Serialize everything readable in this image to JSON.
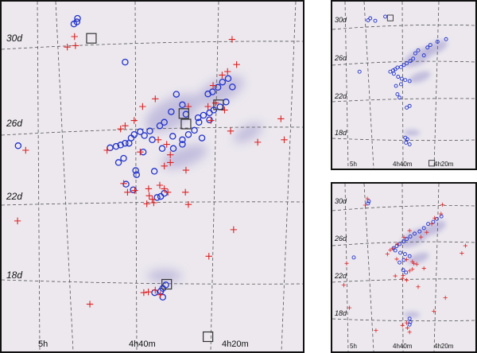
{
  "chart_data": [
    {
      "type": "scatter",
      "panel": "main",
      "title": "",
      "xlabel": "",
      "ylabel": "",
      "x_ticks": [
        "5h",
        "4h40m",
        "4h20m"
      ],
      "y_ticks": [
        "30d",
        "26d",
        "22d",
        "18d"
      ],
      "grid": true,
      "series": [
        {
          "marker": "circle",
          "color": "#2233cc",
          "points": [
            [
              0.252,
              0.048
            ],
            [
              0.25,
              0.058
            ],
            [
              0.24,
              0.064
            ],
            [
              0.41,
              0.173
            ],
            [
              0.733,
              0.23
            ],
            [
              0.752,
              0.22
            ],
            [
              0.718,
              0.245
            ],
            [
              0.7,
              0.258
            ],
            [
              0.685,
              0.264
            ],
            [
              0.766,
              0.244
            ],
            [
              0.745,
              0.287
            ],
            [
              0.725,
              0.301
            ],
            [
              0.704,
              0.31
            ],
            [
              0.69,
              0.318
            ],
            [
              0.67,
              0.325
            ],
            [
              0.652,
              0.332
            ],
            [
              0.58,
              0.265
            ],
            [
              0.6,
              0.295
            ],
            [
              0.563,
              0.315
            ],
            [
              0.612,
              0.322
            ],
            [
              0.54,
              0.345
            ],
            [
              0.525,
              0.355
            ],
            [
              0.492,
              0.37
            ],
            [
              0.46,
              0.372
            ],
            [
              0.44,
              0.38
            ],
            [
              0.43,
              0.39
            ],
            [
              0.41,
              0.405
            ],
            [
              0.395,
              0.41
            ],
            [
              0.38,
              0.414
            ],
            [
              0.36,
              0.418
            ],
            [
              0.423,
              0.405
            ],
            [
              0.474,
              0.383
            ],
            [
              0.5,
              0.395
            ],
            [
              0.568,
              0.385
            ],
            [
              0.6,
              0.395
            ],
            [
              0.64,
              0.368
            ],
            [
              0.655,
              0.345
            ],
            [
              0.69,
              0.338
            ],
            [
              0.665,
              0.39
            ],
            [
              0.62,
              0.38
            ],
            [
              0.6,
              0.408
            ],
            [
              0.57,
              0.42
            ],
            [
              0.533,
              0.42
            ],
            [
              0.47,
              0.43
            ],
            [
              0.405,
              0.448
            ],
            [
              0.388,
              0.46
            ],
            [
              0.055,
              0.412
            ],
            [
              0.445,
              0.483
            ],
            [
              0.448,
              0.495
            ],
            [
              0.507,
              0.485
            ],
            [
              0.54,
              0.548
            ],
            [
              0.528,
              0.557
            ],
            [
              0.516,
              0.56
            ],
            [
              0.413,
              0.522
            ],
            [
              0.437,
              0.538
            ],
            [
              0.545,
              0.81
            ],
            [
              0.535,
              0.82
            ],
            [
              0.528,
              0.828
            ],
            [
              0.508,
              0.832
            ],
            [
              0.535,
              0.845
            ]
          ]
        },
        {
          "marker": "plus",
          "color": "#dd2222",
          "points": [
            [
              0.242,
              0.1
            ],
            [
              0.245,
              0.126
            ],
            [
              0.218,
              0.13
            ],
            [
              0.765,
              0.108
            ],
            [
              0.78,
              0.18
            ],
            [
              0.75,
              0.2
            ],
            [
              0.732,
              0.21
            ],
            [
              0.702,
              0.24
            ],
            [
              0.71,
              0.29
            ],
            [
              0.685,
              0.3
            ],
            [
              0.51,
              0.278
            ],
            [
              0.468,
              0.3
            ],
            [
              0.44,
              0.34
            ],
            [
              0.41,
              0.355
            ],
            [
              0.395,
              0.364
            ],
            [
              0.35,
              0.425
            ],
            [
              0.46,
              0.43
            ],
            [
              0.52,
              0.395
            ],
            [
              0.548,
              0.408
            ],
            [
              0.56,
              0.438
            ],
            [
              0.62,
              0.3
            ],
            [
              0.74,
              0.31
            ],
            [
              0.927,
              0.335
            ],
            [
              0.938,
              0.395
            ],
            [
              0.85,
              0.402
            ],
            [
              0.76,
              0.37
            ],
            [
              0.695,
              0.34
            ],
            [
              0.08,
              0.425
            ],
            [
              0.54,
              0.47
            ],
            [
              0.56,
              0.46
            ],
            [
              0.612,
              0.482
            ],
            [
              0.525,
              0.525
            ],
            [
              0.488,
              0.535
            ],
            [
              0.49,
              0.555
            ],
            [
              0.5,
              0.565
            ],
            [
              0.505,
              0.575
            ],
            [
              0.482,
              0.578
            ],
            [
              0.442,
              0.54
            ],
            [
              0.418,
              0.545
            ],
            [
              0.405,
              0.52
            ],
            [
              0.54,
              0.535
            ],
            [
              0.552,
              0.545
            ],
            [
              0.62,
              0.58
            ],
            [
              0.053,
              0.627
            ],
            [
              0.77,
              0.652
            ],
            [
              0.688,
              0.728
            ],
            [
              0.61,
              0.545
            ],
            [
              0.293,
              0.865
            ],
            [
              0.51,
              0.825
            ],
            [
              0.527,
              0.838
            ],
            [
              0.487,
              0.83
            ],
            [
              0.472,
              0.832
            ]
          ]
        },
        {
          "marker": "square",
          "color": "#333333",
          "points": [
            [
              0.298,
              0.105
            ],
            [
              0.72,
              0.295
            ],
            [
              0.605,
              0.32
            ],
            [
              0.612,
              0.35
            ],
            [
              0.548,
              0.808
            ],
            [
              0.685,
              0.958
            ]
          ]
        }
      ]
    },
    {
      "type": "scatter",
      "panel": "top-right",
      "x_ticks": [
        "5h",
        "4h40m",
        "4h20m"
      ],
      "y_ticks": [
        "30d",
        "26d",
        "22d",
        "18d"
      ],
      "grid": true,
      "series": [
        {
          "marker": "circle",
          "color": "#2233cc",
          "points": [
            [
              0.265,
              0.1
            ],
            [
              0.25,
              0.112
            ],
            [
              0.3,
              0.115
            ],
            [
              0.795,
              0.225
            ],
            [
              0.735,
              0.24
            ],
            [
              0.685,
              0.26
            ],
            [
              0.665,
              0.275
            ],
            [
              0.6,
              0.292
            ],
            [
              0.58,
              0.31
            ],
            [
              0.64,
              0.322
            ],
            [
              0.565,
              0.342
            ],
            [
              0.545,
              0.356
            ],
            [
              0.52,
              0.37
            ],
            [
              0.5,
              0.38
            ],
            [
              0.48,
              0.392
            ],
            [
              0.455,
              0.395
            ],
            [
              0.44,
              0.405
            ],
            [
              0.425,
              0.412
            ],
            [
              0.405,
              0.42
            ],
            [
              0.43,
              0.432
            ],
            [
              0.46,
              0.45
            ],
            [
              0.485,
              0.462
            ],
            [
              0.51,
              0.47
            ],
            [
              0.54,
              0.476
            ],
            [
              0.48,
              0.495
            ],
            [
              0.445,
              0.505
            ],
            [
              0.19,
              0.42
            ],
            [
              0.455,
              0.555
            ],
            [
              0.47,
              0.575
            ],
            [
              0.54,
              0.625
            ],
            [
              0.52,
              0.635
            ],
            [
              0.51,
              0.815
            ],
            [
              0.525,
              0.825
            ],
            [
              0.515,
              0.845
            ],
            [
              0.54,
              0.855
            ],
            [
              0.37,
              0.09
            ]
          ]
        },
        {
          "marker": "square",
          "color": "#333333",
          "points": [
            [
              0.405,
              0.098
            ],
            [
              0.695,
              0.968
            ]
          ]
        }
      ]
    },
    {
      "type": "scatter",
      "panel": "bottom-right",
      "x_ticks": [
        "5h",
        "4h40m",
        "4h20m"
      ],
      "y_ticks": [
        "30d",
        "26d",
        "22d",
        "18d"
      ],
      "grid": true,
      "series": [
        {
          "marker": "circle",
          "color": "#2233cc",
          "points": [
            [
              0.255,
              0.105
            ],
            [
              0.25,
              0.118
            ],
            [
              0.762,
              0.195
            ],
            [
              0.73,
              0.21
            ],
            [
              0.705,
              0.228
            ],
            [
              0.67,
              0.24
            ],
            [
              0.64,
              0.265
            ],
            [
              0.61,
              0.285
            ],
            [
              0.575,
              0.298
            ],
            [
              0.545,
              0.315
            ],
            [
              0.52,
              0.33
            ],
            [
              0.498,
              0.345
            ],
            [
              0.47,
              0.36
            ],
            [
              0.45,
              0.372
            ],
            [
              0.428,
              0.385
            ],
            [
              0.44,
              0.398
            ],
            [
              0.475,
              0.412
            ],
            [
              0.508,
              0.42
            ],
            [
              0.54,
              0.432
            ],
            [
              0.5,
              0.455
            ],
            [
              0.47,
              0.47
            ],
            [
              0.495,
              0.515
            ],
            [
              0.515,
              0.53
            ],
            [
              0.15,
              0.44
            ],
            [
              0.54,
              0.805
            ],
            [
              0.545,
              0.825
            ],
            [
              0.54,
              0.84
            ]
          ]
        },
        {
          "marker": "plus",
          "color": "#dd2222",
          "points": [
            [
              0.245,
              0.09
            ],
            [
              0.23,
              0.128
            ],
            [
              0.77,
              0.125
            ],
            [
              0.76,
              0.18
            ],
            [
              0.715,
              0.205
            ],
            [
              0.695,
              0.24
            ],
            [
              0.66,
              0.29
            ],
            [
              0.62,
              0.318
            ],
            [
              0.54,
              0.28
            ],
            [
              0.5,
              0.32
            ],
            [
              0.455,
              0.36
            ],
            [
              0.425,
              0.385
            ],
            [
              0.405,
              0.395
            ],
            [
              0.385,
              0.42
            ],
            [
              0.45,
              0.45
            ],
            [
              0.52,
              0.452
            ],
            [
              0.56,
              0.465
            ],
            [
              0.59,
              0.48
            ],
            [
              0.56,
              0.51
            ],
            [
              0.54,
              0.52
            ],
            [
              0.495,
              0.548
            ],
            [
              0.49,
              0.565
            ],
            [
              0.52,
              0.575
            ],
            [
              0.44,
              0.55
            ],
            [
              0.64,
              0.505
            ],
            [
              0.905,
              0.415
            ],
            [
              0.93,
              0.37
            ],
            [
              0.1,
              0.475
            ],
            [
              0.6,
              0.615
            ],
            [
              0.79,
              0.68
            ],
            [
              0.71,
              0.76
            ],
            [
              0.12,
              0.74
            ],
            [
              0.305,
              0.875
            ],
            [
              0.52,
              0.83
            ],
            [
              0.49,
              0.845
            ],
            [
              0.525,
              0.86
            ],
            [
              0.54,
              0.885
            ],
            [
              0.08,
              0.605
            ],
            [
              0.57,
              0.475
            ]
          ]
        }
      ]
    }
  ]
}
